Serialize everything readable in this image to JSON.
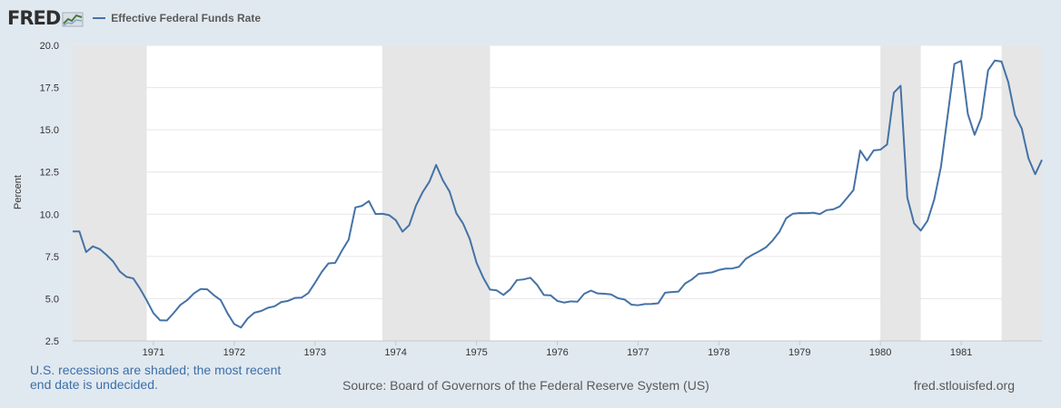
{
  "header": {
    "logo_text": "FRED",
    "legend_label": "Effective Federal Funds Rate"
  },
  "colors": {
    "background": "#e1e9f0",
    "plot_background": "#ffffff",
    "recession_shading": "#e6e6e6",
    "series_line": "#4572a7",
    "grid": "#e6e6e6"
  },
  "chart_data": {
    "type": "line",
    "title": "Effective Federal Funds Rate",
    "xlabel": "",
    "ylabel": "Percent",
    "xlim": [
      1970.0,
      1982.0
    ],
    "ylim": [
      2.5,
      20.0
    ],
    "yticks": [
      {
        "value": 2.5,
        "label": "2.5"
      },
      {
        "value": 5.0,
        "label": "5.0"
      },
      {
        "value": 7.5,
        "label": "7.5"
      },
      {
        "value": 10.0,
        "label": "10.0"
      },
      {
        "value": 12.5,
        "label": "12.5"
      },
      {
        "value": 15.0,
        "label": "15.0"
      },
      {
        "value": 17.5,
        "label": "17.5"
      },
      {
        "value": 20.0,
        "label": "20.0"
      }
    ],
    "xticks": [
      {
        "value": 1971,
        "label": "1971"
      },
      {
        "value": 1972,
        "label": "1972"
      },
      {
        "value": 1973,
        "label": "1973"
      },
      {
        "value": 1974,
        "label": "1974"
      },
      {
        "value": 1975,
        "label": "1975"
      },
      {
        "value": 1976,
        "label": "1976"
      },
      {
        "value": 1977,
        "label": "1977"
      },
      {
        "value": 1978,
        "label": "1978"
      },
      {
        "value": 1979,
        "label": "1979"
      },
      {
        "value": 1980,
        "label": "1980"
      },
      {
        "value": 1981,
        "label": "1981"
      }
    ],
    "recessions": [
      {
        "start": 1970.0,
        "end": 1970.917
      },
      {
        "start": 1973.833,
        "end": 1975.167
      },
      {
        "start": 1980.0,
        "end": 1980.5
      },
      {
        "start": 1981.5,
        "end": 1982.0
      }
    ],
    "series": [
      {
        "name": "Effective Federal Funds Rate",
        "start_year": 1970,
        "start_month": 1,
        "frequency": "monthly",
        "values": [
          8.98,
          8.98,
          7.76,
          8.1,
          7.94,
          7.6,
          7.21,
          6.61,
          6.29,
          6.2,
          5.6,
          4.9,
          4.14,
          3.72,
          3.71,
          4.15,
          4.63,
          4.91,
          5.31,
          5.57,
          5.55,
          5.2,
          4.91,
          4.14,
          3.5,
          3.29,
          3.83,
          4.17,
          4.27,
          4.46,
          4.55,
          4.8,
          4.87,
          5.04,
          5.06,
          5.33,
          5.94,
          6.58,
          7.09,
          7.12,
          7.84,
          8.49,
          10.4,
          10.5,
          10.78,
          10.01,
          10.03,
          9.95,
          9.65,
          8.97,
          9.35,
          10.51,
          11.31,
          11.93,
          12.92,
          12.01,
          11.34,
          10.06,
          9.45,
          8.53,
          7.13,
          6.24,
          5.54,
          5.49,
          5.22,
          5.55,
          6.1,
          6.14,
          6.24,
          5.82,
          5.22,
          5.2,
          4.87,
          4.77,
          4.84,
          4.82,
          5.29,
          5.48,
          5.31,
          5.29,
          5.25,
          5.03,
          4.95,
          4.65,
          4.61,
          4.68,
          4.69,
          4.73,
          5.35,
          5.39,
          5.42,
          5.9,
          6.14,
          6.47,
          6.51,
          6.56,
          6.7,
          6.78,
          6.79,
          6.89,
          7.36,
          7.6,
          7.81,
          8.04,
          8.45,
          8.96,
          9.76,
          10.03,
          10.07,
          10.06,
          10.09,
          10.01,
          10.24,
          10.29,
          10.47,
          10.94,
          11.43,
          13.77,
          13.18,
          13.78,
          13.82,
          14.13,
          17.19,
          17.61,
          10.98,
          9.47,
          9.03,
          9.61,
          10.87,
          12.81,
          15.85,
          18.9,
          19.08,
          15.93,
          14.7,
          15.72,
          18.52,
          19.1,
          19.04,
          17.82,
          15.87,
          15.08,
          13.31,
          12.37,
          13.22
        ]
      }
    ]
  },
  "footer": {
    "note": "U.S. recessions are shaded; the most recent end date is undecided.",
    "source": "Source: Board of Governors of the Federal Reserve System (US)",
    "url": "fred.stlouisfed.org"
  }
}
